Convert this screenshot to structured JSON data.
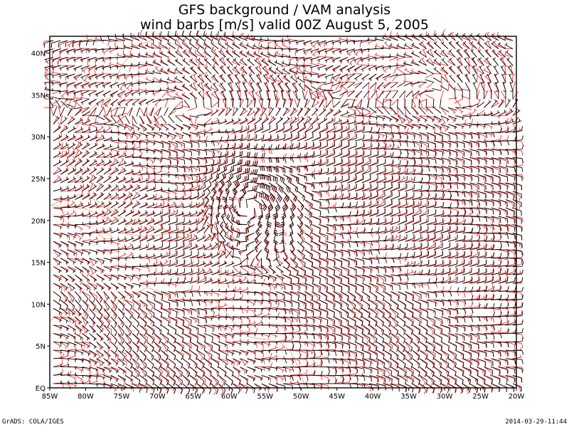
{
  "chart_data": {
    "type": "wind-barb-map",
    "title": "GFS background / VAM analysis",
    "subtitle": "wind barbs [m/s] valid 00Z August 5, 2005",
    "x_ticks": [
      "85W",
      "80W",
      "75W",
      "70W",
      "65W",
      "60W",
      "55W",
      "50W",
      "45W",
      "40W",
      "35W",
      "30W",
      "25W",
      "20W"
    ],
    "y_ticks": [
      "EQ",
      "5N",
      "10N",
      "15N",
      "20N",
      "25N",
      "30N",
      "35N",
      "40N"
    ],
    "x_range": [
      -85,
      -20
    ],
    "y_range": [
      0,
      42
    ],
    "grid_spacing_deg": 1,
    "cyclone_center": [
      -57,
      22
    ],
    "series": [
      {
        "name": "",
        "color": "#000000"
      },
      {
        "name": "",
        "color": "#ff2a2a"
      }
    ],
    "coastline_color": "#e8a070"
  },
  "footer": {
    "left": "GrADS: COLA/IGES",
    "right": "2014-03-29-11:44"
  }
}
